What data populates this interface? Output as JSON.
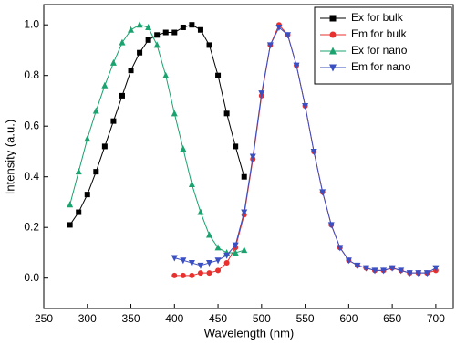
{
  "chart_data": {
    "type": "line",
    "x_label": "Wavelength (nm)",
    "y_label": "Intensity (a.u.)",
    "xlim": [
      250,
      720
    ],
    "ylim": [
      -0.12,
      1.08
    ],
    "xticks": [
      250,
      300,
      350,
      400,
      450,
      500,
      550,
      600,
      650,
      700
    ],
    "yticks": [
      {
        "value": 0,
        "label": "0.0"
      },
      {
        "value": 0.2,
        "label": "0.2"
      },
      {
        "value": 0.4,
        "label": "0.4"
      },
      {
        "value": 0.6,
        "label": "0.6"
      },
      {
        "value": 0.8,
        "label": "0.8"
      },
      {
        "value": 1,
        "label": "1.0"
      }
    ],
    "legend": "upper right",
    "series": [
      {
        "name": "Ex for bulk",
        "color": "#000000",
        "marker": "square",
        "x": [
          280,
          290,
          300,
          310,
          320,
          330,
          340,
          350,
          360,
          370,
          380,
          390,
          400,
          410,
          420,
          430,
          440,
          450,
          460,
          470,
          480
        ],
        "values": [
          0.21,
          0.26,
          0.33,
          0.42,
          0.52,
          0.62,
          0.72,
          0.82,
          0.89,
          0.94,
          0.96,
          0.97,
          0.97,
          0.99,
          1.0,
          0.98,
          0.92,
          0.8,
          0.65,
          0.52,
          0.4
        ]
      },
      {
        "name": "Em for bulk",
        "color": "#e8312f",
        "marker": "circle",
        "x": [
          400,
          410,
          420,
          430,
          440,
          450,
          460,
          470,
          480,
          490,
          500,
          510,
          520,
          530,
          540,
          550,
          560,
          570,
          580,
          590,
          600,
          610,
          620,
          630,
          640,
          650,
          660,
          670,
          680,
          690,
          700
        ],
        "values": [
          0.01,
          0.01,
          0.01,
          0.02,
          0.02,
          0.03,
          0.06,
          0.12,
          0.25,
          0.47,
          0.72,
          0.92,
          1.0,
          0.96,
          0.84,
          0.68,
          0.5,
          0.34,
          0.21,
          0.12,
          0.07,
          0.05,
          0.04,
          0.03,
          0.03,
          0.04,
          0.03,
          0.02,
          0.02,
          0.02,
          0.03
        ]
      },
      {
        "name": "Ex for nano",
        "color": "#1ba36f",
        "marker": "triangle-up",
        "x": [
          280,
          290,
          300,
          310,
          320,
          330,
          340,
          350,
          360,
          370,
          380,
          390,
          400,
          410,
          420,
          430,
          440,
          450,
          460,
          470,
          480
        ],
        "values": [
          0.29,
          0.42,
          0.55,
          0.66,
          0.76,
          0.85,
          0.93,
          0.98,
          1.0,
          0.99,
          0.92,
          0.8,
          0.65,
          0.51,
          0.37,
          0.26,
          0.17,
          0.12,
          0.1,
          0.1,
          0.11
        ]
      },
      {
        "name": "Em for nano",
        "color": "#3a4fc1",
        "marker": "triangle-down",
        "x": [
          400,
          410,
          420,
          430,
          440,
          450,
          460,
          470,
          480,
          490,
          500,
          510,
          520,
          530,
          540,
          550,
          560,
          570,
          580,
          590,
          600,
          610,
          620,
          630,
          640,
          650,
          660,
          670,
          680,
          690,
          700
        ],
        "values": [
          0.08,
          0.07,
          0.06,
          0.05,
          0.06,
          0.07,
          0.09,
          0.13,
          0.26,
          0.48,
          0.73,
          0.92,
          0.99,
          0.96,
          0.84,
          0.68,
          0.5,
          0.34,
          0.21,
          0.12,
          0.07,
          0.05,
          0.04,
          0.03,
          0.03,
          0.04,
          0.03,
          0.02,
          0.02,
          0.02,
          0.04
        ]
      }
    ]
  }
}
